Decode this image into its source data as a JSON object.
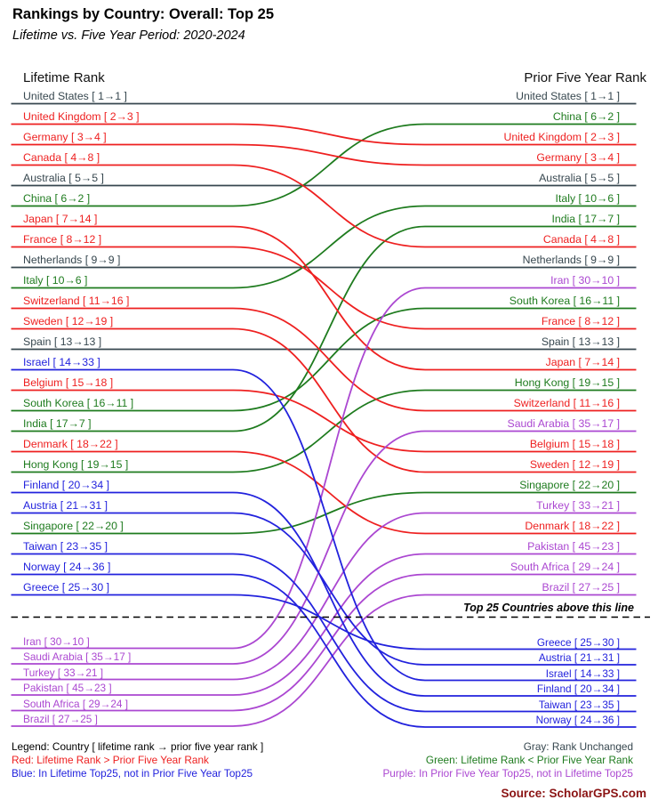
{
  "title": "Rankings by Country: Overall: Top 25",
  "subtitle": "Lifetime vs. Five Year Period: 2020-2024",
  "left_header": "Lifetime Rank",
  "right_header": "Prior Five Year Rank",
  "divider_note": "Top 25 Countries above this line",
  "legend": {
    "intro": "Legend: Country [ lifetime rank → prior five year rank ]",
    "red": "Red: Lifetime Rank > Prior Five Year Rank",
    "blue": "Blue: In Lifetime Top25, not in Prior Five Year Top25",
    "gray": "Gray: Rank Unchanged",
    "green": "Green: Lifetime Rank < Prior Five Year Rank",
    "purple": "Purple: In Prior Five Year Top25, not in Lifetime Top25"
  },
  "source": "Source: ScholarGPS.com",
  "colors": {
    "gray": "#37474f",
    "red": "#ee2020",
    "green": "#1e7b1e",
    "blue": "#2222dd",
    "purple": "#ab47d1",
    "source": "#8b1414",
    "text": "#000000"
  },
  "chart_data": {
    "type": "bump",
    "left_axis": "Lifetime Rank",
    "right_axis": "Prior Five Year Rank",
    "label_format": "Name [ lifetime→prior ]",
    "top_n": 25,
    "countries": [
      {
        "name": "United States",
        "lifetime": 1,
        "prior": 1,
        "category": "gray"
      },
      {
        "name": "United Kingdom",
        "lifetime": 2,
        "prior": 3,
        "category": "red"
      },
      {
        "name": "Germany",
        "lifetime": 3,
        "prior": 4,
        "category": "red"
      },
      {
        "name": "Canada",
        "lifetime": 4,
        "prior": 8,
        "category": "red"
      },
      {
        "name": "Australia",
        "lifetime": 5,
        "prior": 5,
        "category": "gray"
      },
      {
        "name": "China",
        "lifetime": 6,
        "prior": 2,
        "category": "green"
      },
      {
        "name": "Japan",
        "lifetime": 7,
        "prior": 14,
        "category": "red"
      },
      {
        "name": "France",
        "lifetime": 8,
        "prior": 12,
        "category": "red"
      },
      {
        "name": "Netherlands",
        "lifetime": 9,
        "prior": 9,
        "category": "gray"
      },
      {
        "name": "Italy",
        "lifetime": 10,
        "prior": 6,
        "category": "green"
      },
      {
        "name": "Switzerland",
        "lifetime": 11,
        "prior": 16,
        "category": "red"
      },
      {
        "name": "Sweden",
        "lifetime": 12,
        "prior": 19,
        "category": "red"
      },
      {
        "name": "Spain",
        "lifetime": 13,
        "prior": 13,
        "category": "gray"
      },
      {
        "name": "Israel",
        "lifetime": 14,
        "prior": 33,
        "category": "blue"
      },
      {
        "name": "Belgium",
        "lifetime": 15,
        "prior": 18,
        "category": "red"
      },
      {
        "name": "South Korea",
        "lifetime": 16,
        "prior": 11,
        "category": "green"
      },
      {
        "name": "India",
        "lifetime": 17,
        "prior": 7,
        "category": "green"
      },
      {
        "name": "Denmark",
        "lifetime": 18,
        "prior": 22,
        "category": "red"
      },
      {
        "name": "Hong Kong",
        "lifetime": 19,
        "prior": 15,
        "category": "green"
      },
      {
        "name": "Finland",
        "lifetime": 20,
        "prior": 34,
        "category": "blue"
      },
      {
        "name": "Austria",
        "lifetime": 21,
        "prior": 31,
        "category": "blue"
      },
      {
        "name": "Singapore",
        "lifetime": 22,
        "prior": 20,
        "category": "green"
      },
      {
        "name": "Taiwan",
        "lifetime": 23,
        "prior": 35,
        "category": "blue"
      },
      {
        "name": "Norway",
        "lifetime": 24,
        "prior": 36,
        "category": "blue"
      },
      {
        "name": "Greece",
        "lifetime": 25,
        "prior": 30,
        "category": "blue"
      },
      {
        "name": "Iran",
        "lifetime": 30,
        "prior": 10,
        "category": "purple"
      },
      {
        "name": "Saudi Arabia",
        "lifetime": 35,
        "prior": 17,
        "category": "purple"
      },
      {
        "name": "Turkey",
        "lifetime": 33,
        "prior": 21,
        "category": "purple"
      },
      {
        "name": "Pakistan",
        "lifetime": 45,
        "prior": 23,
        "category": "purple"
      },
      {
        "name": "South Africa",
        "lifetime": 29,
        "prior": 24,
        "category": "purple"
      },
      {
        "name": "Brazil",
        "lifetime": 27,
        "prior": 25,
        "category": "purple"
      }
    ]
  }
}
